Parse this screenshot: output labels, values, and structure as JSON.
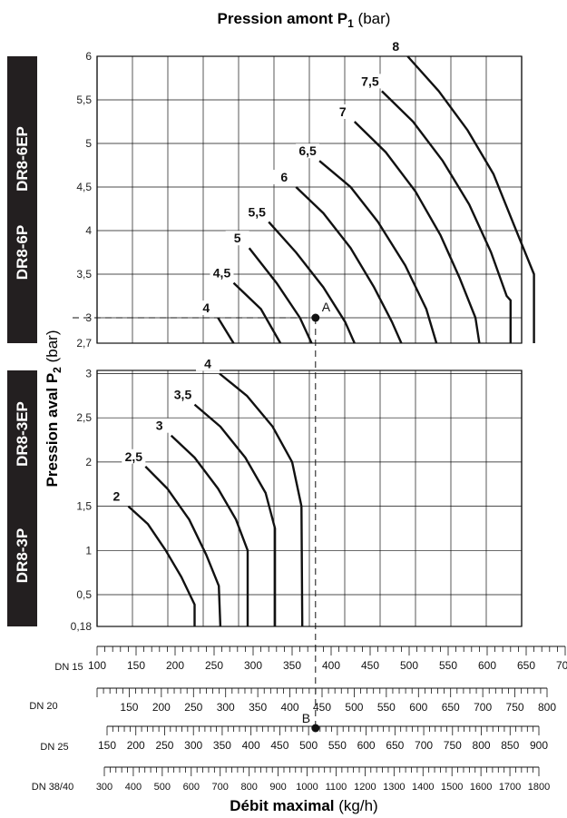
{
  "chart_data": {
    "type": "line",
    "title_bold": "Pression amont P",
    "title_sub": "1",
    "title_unit": " (bar)",
    "ylabel_bold": "Pression aval P",
    "ylabel_sub": "2",
    "ylabel_unit": " (bar)",
    "xlabel_bold": "Débit maximal",
    "xlabel_unit": " (kg/h)",
    "grid": true,
    "upper_panel": {
      "device_labels": [
        "DR8-6EP",
        "DR8-6P"
      ],
      "ylim": [
        2.7,
        6
      ],
      "yticks": [
        "2,7",
        "3",
        "3,5",
        "4",
        "4,5",
        "5",
        "5,5",
        "6"
      ],
      "series": [
        {
          "name": "4",
          "points": [
            [
              255,
              3.0
            ],
            [
              275,
              2.7
            ]
          ]
        },
        {
          "name": "4,5",
          "points": [
            [
              275,
              3.4
            ],
            [
              310,
              3.1
            ],
            [
              335,
              2.7
            ]
          ]
        },
        {
          "name": "5",
          "points": [
            [
              295,
              3.8
            ],
            [
              330,
              3.4
            ],
            [
              360,
              3.0
            ],
            [
              375,
              2.7
            ]
          ]
        },
        {
          "name": "5,5",
          "points": [
            [
              320,
              4.1
            ],
            [
              355,
              3.75
            ],
            [
              390,
              3.35
            ],
            [
              418,
              2.95
            ],
            [
              430,
              2.7
            ]
          ]
        },
        {
          "name": "6",
          "points": [
            [
              355,
              4.5
            ],
            [
              390,
              4.2
            ],
            [
              425,
              3.8
            ],
            [
              455,
              3.35
            ],
            [
              478,
              2.95
            ],
            [
              490,
              2.7
            ]
          ]
        },
        {
          "name": "6,5",
          "points": [
            [
              385,
              4.8
            ],
            [
              425,
              4.5
            ],
            [
              460,
              4.1
            ],
            [
              495,
              3.6
            ],
            [
              522,
              3.1
            ],
            [
              535,
              2.7
            ]
          ]
        },
        {
          "name": "7",
          "points": [
            [
              430,
              5.25
            ],
            [
              470,
              4.9
            ],
            [
              508,
              4.45
            ],
            [
              540,
              3.95
            ],
            [
              565,
              3.45
            ],
            [
              585,
              3.0
            ],
            [
              590,
              2.7
            ]
          ]
        },
        {
          "name": "7,5",
          "points": [
            [
              465,
              5.6
            ],
            [
              505,
              5.25
            ],
            [
              543,
              4.8
            ],
            [
              577,
              4.3
            ],
            [
              605,
              3.75
            ],
            [
              625,
              3.25
            ],
            [
              630,
              3.2
            ],
            [
              630,
              2.7
            ]
          ]
        },
        {
          "name": "8",
          "points": [
            [
              498,
              6.0
            ],
            [
              538,
              5.6
            ],
            [
              575,
              5.15
            ],
            [
              608,
              4.65
            ],
            [
              635,
              4.05
            ],
            [
              660,
              3.5
            ],
            [
              660,
              2.7
            ]
          ]
        }
      ]
    },
    "lower_panel": {
      "device_labels": [
        "DR8-3EP",
        "DR8-3P"
      ],
      "ylim": [
        0.18,
        3
      ],
      "yticks": [
        "0,18",
        "0,5",
        "1",
        "1,5",
        "2",
        "2,5",
        "3"
      ],
      "series": [
        {
          "name": "2",
          "points": [
            [
              140,
              1.5
            ],
            [
              165,
              1.3
            ],
            [
              188,
              1.0
            ],
            [
              208,
              0.7
            ],
            [
              225,
              0.4
            ],
            [
              225,
              0.18
            ]
          ]
        },
        {
          "name": "2,5",
          "points": [
            [
              162,
              1.95
            ],
            [
              190,
              1.7
            ],
            [
              218,
              1.35
            ],
            [
              240,
              0.95
            ],
            [
              256,
              0.6
            ],
            [
              258,
              0.18
            ]
          ]
        },
        {
          "name": "3",
          "points": [
            [
              195,
              2.3
            ],
            [
              225,
              2.05
            ],
            [
              255,
              1.7
            ],
            [
              278,
              1.35
            ],
            [
              293,
              1.0
            ],
            [
              293,
              0.18
            ]
          ]
        },
        {
          "name": "3,5",
          "points": [
            [
              225,
              2.65
            ],
            [
              258,
              2.4
            ],
            [
              290,
              2.05
            ],
            [
              316,
              1.65
            ],
            [
              328,
              1.25
            ],
            [
              328,
              0.18
            ]
          ]
        },
        {
          "name": "4",
          "points": [
            [
              257,
              3.0
            ],
            [
              292,
              2.75
            ],
            [
              325,
              2.4
            ],
            [
              350,
              2.0
            ],
            [
              362,
              1.5
            ],
            [
              363,
              0.18
            ]
          ]
        }
      ]
    },
    "example_points": [
      {
        "label": "A",
        "x": 380,
        "y": 3.0
      },
      {
        "label": "B",
        "x": 380,
        "y": null
      }
    ],
    "flow_scales": [
      {
        "label": "DN 15",
        "min": 100,
        "max": 700,
        "major_step": 50,
        "minor_step": 10,
        "ticks": [
          "100",
          "150",
          "200",
          "250",
          "300",
          "350",
          "400",
          "450",
          "500",
          "550",
          "600",
          "650",
          "700"
        ]
      },
      {
        "label": "DN 20",
        "min": 100,
        "max": 800,
        "major_step": 50,
        "minor_step": 10,
        "start_major": 150,
        "ticks": [
          "150",
          "200",
          "250",
          "300",
          "350",
          "400",
          "450",
          "500",
          "550",
          "600",
          "650",
          "700",
          "750",
          "800"
        ]
      },
      {
        "label": "DN 25",
        "min": 150,
        "max": 900,
        "major_step": 50,
        "minor_step": 10,
        "ticks": [
          "150",
          "200",
          "250",
          "300",
          "350",
          "400",
          "450",
          "500",
          "550",
          "600",
          "650",
          "700",
          "750",
          "800",
          "850",
          "900"
        ]
      },
      {
        "label": "DN 38/40",
        "min": 300,
        "max": 1800,
        "major_step": 100,
        "minor_step": 20,
        "ticks": [
          "300",
          "400",
          "500",
          "600",
          "700",
          "800",
          "900",
          "1000",
          "1100",
          "1200",
          "1300",
          "1400",
          "1500",
          "1600",
          "1700",
          "1800"
        ]
      }
    ]
  }
}
